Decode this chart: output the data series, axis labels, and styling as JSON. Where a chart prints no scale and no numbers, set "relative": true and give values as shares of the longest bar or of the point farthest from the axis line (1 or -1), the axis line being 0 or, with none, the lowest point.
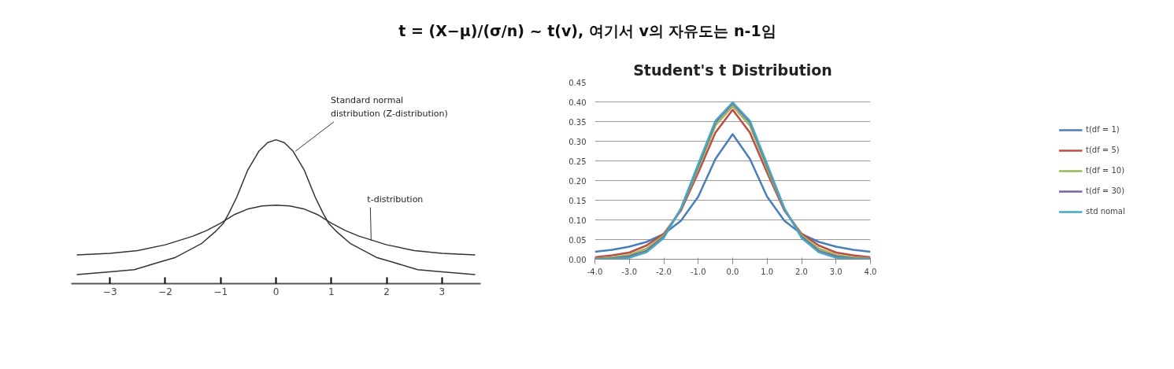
{
  "chart_data": [
    {
      "type": "other",
      "title": "t = (X−μ)/(σ/n) ~ t(v), 여기서 v의 자유도는 n-1임"
    },
    {
      "type": "line",
      "relative": true,
      "tick_labels": "x",
      "grid": false,
      "xlim": [
        -3.7,
        3.7
      ],
      "xticks": [
        {
          "value": -3,
          "label": "−3"
        },
        {
          "value": -2,
          "label": "−2"
        },
        {
          "value": -1,
          "label": "−1"
        },
        0,
        1,
        2,
        3
      ],
      "series": [
        {
          "color": "#333333",
          "x": [
            -3.6,
            -3.0,
            -2.56,
            -2.1,
            -1.83,
            -1.34,
            -1.1,
            -0.95,
            -0.85,
            -0.71,
            -0.51,
            -0.31,
            -0.15,
            0,
            0.15,
            0.31,
            0.51,
            0.71,
            0.85,
            0.95,
            1.1,
            1.34,
            1.83,
            2.1,
            2.56,
            3.0,
            3.6
          ],
          "values": [
            0.063,
            0.082,
            0.097,
            0.15,
            0.18,
            0.28,
            0.36,
            0.42,
            0.49,
            0.6,
            0.79,
            0.92,
            0.98,
            1.0,
            0.98,
            0.92,
            0.79,
            0.6,
            0.49,
            0.42,
            0.36,
            0.28,
            0.18,
            0.15,
            0.097,
            0.082,
            0.063
          ]
        },
        {
          "color": "#333333",
          "x": [
            -3.6,
            -3.0,
            -2.5,
            -2,
            -1.5,
            -1.25,
            -1,
            -0.75,
            -0.5,
            -0.25,
            0,
            0.25,
            0.5,
            0.75,
            1,
            1.25,
            1.5,
            2,
            2.5,
            3.0,
            3.6
          ],
          "values": [
            0.2,
            0.21,
            0.23,
            0.27,
            0.33,
            0.37,
            0.42,
            0.48,
            0.52,
            0.54,
            0.546,
            0.54,
            0.52,
            0.48,
            0.42,
            0.37,
            0.33,
            0.27,
            0.23,
            0.21,
            0.2
          ]
        }
      ],
      "annotations": [
        {
          "text": "Standard normal\ndistribution (Z-distribution)",
          "x": 0.35,
          "y": 0.92
        },
        {
          "text": "t-distribution",
          "x": 1.72,
          "y": 0.3
        }
      ]
    },
    {
      "type": "line",
      "title": "Student's t Distribution",
      "grid": "y",
      "legend": "right",
      "marker": "none",
      "xlim": [
        -4,
        4
      ],
      "xticks": [
        {
          "value": -4,
          "label": "-4.0"
        },
        {
          "value": -3,
          "label": "-3.0"
        },
        {
          "value": -2,
          "label": "-2.0"
        },
        {
          "value": -1,
          "label": "-1.0"
        },
        {
          "value": 0,
          "label": "0.0"
        },
        {
          "value": 1,
          "label": "1.0"
        },
        {
          "value": 2,
          "label": "2.0"
        },
        {
          "value": 3,
          "label": "3.0"
        },
        {
          "value": 4,
          "label": "4.0"
        }
      ],
      "ylim": [
        0,
        0.45
      ],
      "yticks": [
        {
          "value": 0,
          "label": "0.00"
        },
        {
          "value": 0.05,
          "label": "0.05"
        },
        {
          "value": 0.1,
          "label": "0.10"
        },
        {
          "value": 0.15,
          "label": "0.15"
        },
        {
          "value": 0.2,
          "label": "0.20"
        },
        {
          "value": 0.25,
          "label": "0.25"
        },
        {
          "value": 0.3,
          "label": "0.30"
        },
        {
          "value": 0.35,
          "label": "0.35"
        },
        {
          "value": 0.4,
          "label": "0.40"
        },
        {
          "value": 0.45,
          "label": "0.45"
        }
      ],
      "x": [
        -4,
        -3.5,
        -3,
        -2.5,
        -2,
        -1.5,
        -1,
        -0.5,
        0,
        0.5,
        1,
        1.5,
        2,
        2.5,
        3,
        3.5,
        4
      ],
      "series": [
        {
          "name": "t(df = 1)",
          "color": "#4a7ebb",
          "values": [
            0.019,
            0.024,
            0.032,
            0.044,
            0.064,
            0.098,
            0.159,
            0.255,
            0.318,
            0.255,
            0.159,
            0.098,
            0.064,
            0.044,
            0.032,
            0.024,
            0.019
          ]
        },
        {
          "name": "t(df = 5)",
          "color": "#be4b48",
          "values": [
            0.005,
            0.01,
            0.017,
            0.035,
            0.065,
            0.124,
            0.22,
            0.322,
            0.38,
            0.322,
            0.22,
            0.124,
            0.065,
            0.035,
            0.017,
            0.01,
            0.005
          ]
        },
        {
          "name": "t(df = 10)",
          "color": "#98b954",
          "values": [
            0.002,
            0.005,
            0.011,
            0.027,
            0.061,
            0.127,
            0.23,
            0.34,
            0.389,
            0.34,
            0.23,
            0.127,
            0.061,
            0.027,
            0.011,
            0.005,
            0.002
          ]
        },
        {
          "name": "t(df = 30)",
          "color": "#7d60a0",
          "values": [
            0.001,
            0.002,
            0.007,
            0.021,
            0.057,
            0.128,
            0.238,
            0.348,
            0.396,
            0.348,
            0.238,
            0.128,
            0.057,
            0.021,
            0.007,
            0.002,
            0.001
          ]
        },
        {
          "name": "std nomal",
          "color": "#46aac5",
          "values": [
            0.0,
            0.001,
            0.004,
            0.018,
            0.054,
            0.13,
            0.242,
            0.352,
            0.399,
            0.352,
            0.242,
            0.13,
            0.054,
            0.018,
            0.004,
            0.001,
            0.0
          ]
        }
      ]
    }
  ]
}
